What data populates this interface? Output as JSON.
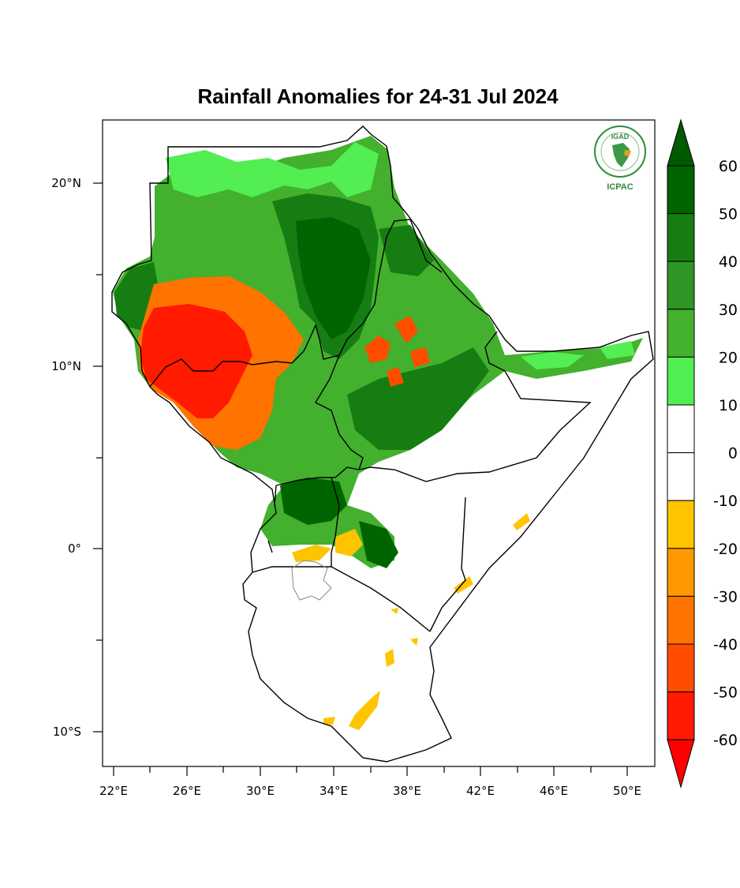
{
  "title": "Rainfall Anomalies for 24-31 Jul 2024",
  "logo": {
    "top_text": "IGAD",
    "bottom_text": "ICPAC"
  },
  "axes": {
    "lat_labels": [
      "20°N",
      "10°N",
      "0°",
      "10°S"
    ],
    "lon_labels": [
      "22°E",
      "26°E",
      "30°E",
      "34°E",
      "38°E",
      "42°E",
      "46°E",
      "50°E"
    ]
  },
  "colorbar": {
    "labels": [
      "60",
      "50",
      "40",
      "30",
      "20",
      "10",
      "0",
      "-10",
      "-20",
      "-30",
      "-40",
      "-50",
      "-60"
    ],
    "top_arrow_color": "#005a00",
    "bottom_arrow_color": "#ff0000",
    "bins": [
      {
        "range": "50 to 60",
        "color": "#006400"
      },
      {
        "range": "40 to 50",
        "color": "#167d12"
      },
      {
        "range": "30 to 40",
        "color": "#2d9624"
      },
      {
        "range": "20 to 30",
        "color": "#43b02e"
      },
      {
        "range": "10 to 20",
        "color": "#52ee52"
      },
      {
        "range": "0 to 10",
        "color": "#ffffff"
      },
      {
        "range": "-10 to 0",
        "color": "#ffffff"
      },
      {
        "range": "-20 to -10",
        "color": "#ffc400"
      },
      {
        "range": "-30 to -20",
        "color": "#ff9900"
      },
      {
        "range": "-40 to -30",
        "color": "#ff7300"
      },
      {
        "range": "-50 to -40",
        "color": "#ff4d00"
      },
      {
        "range": "-60 to -50",
        "color": "#ff1a00"
      }
    ]
  }
}
